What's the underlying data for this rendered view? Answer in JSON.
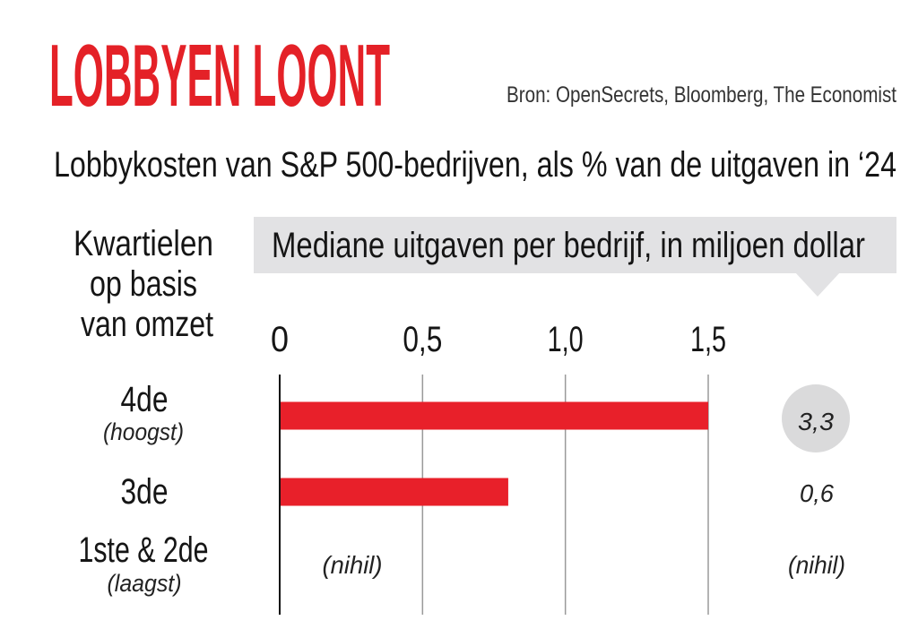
{
  "chart_data": {
    "type": "bar",
    "orientation": "horizontal",
    "title": "LOBBYEN LOONT",
    "source": "Bron: OpenSecrets, Bloomberg, The Economist",
    "subtitle": "Lobbykosten van S&P 500-bedrijven, als % van de uitgaven in ‘24",
    "category_header": [
      "Kwartielen",
      "op basis",
      "van omzet"
    ],
    "categories": [
      {
        "label": "4de",
        "note": "(hoogst)"
      },
      {
        "label": "3de"
      },
      {
        "label": "1ste & 2de",
        "note": "(laagst)"
      }
    ],
    "values": [
      1.5,
      0.8,
      null
    ],
    "value_labels": [
      null,
      null,
      "(nihil)"
    ],
    "x_axis": {
      "range": [
        0,
        1.5
      ],
      "ticks": [
        {
          "value": 0,
          "label": "0"
        },
        {
          "value": 0.5,
          "label": "0,5"
        },
        {
          "value": 1.0,
          "label": "1,0"
        },
        {
          "value": 1.5,
          "label": "1,5"
        }
      ],
      "grid": true
    },
    "side_column": {
      "header": "Mediane uitgaven per bedrijf, in miljoen dollar",
      "values": [
        3.3,
        0.6,
        null
      ],
      "labels": [
        "3,3",
        "0,6",
        "(nihil)"
      ],
      "highlighted": [
        true,
        false,
        false
      ]
    },
    "legend": "none",
    "colors": {
      "title": "#e42127",
      "bar": "#e8202a",
      "header_box": "#e2e2e4",
      "highlight_circle": "#dadadb",
      "grid": "#9a9a9a",
      "axis": "#111111"
    }
  }
}
